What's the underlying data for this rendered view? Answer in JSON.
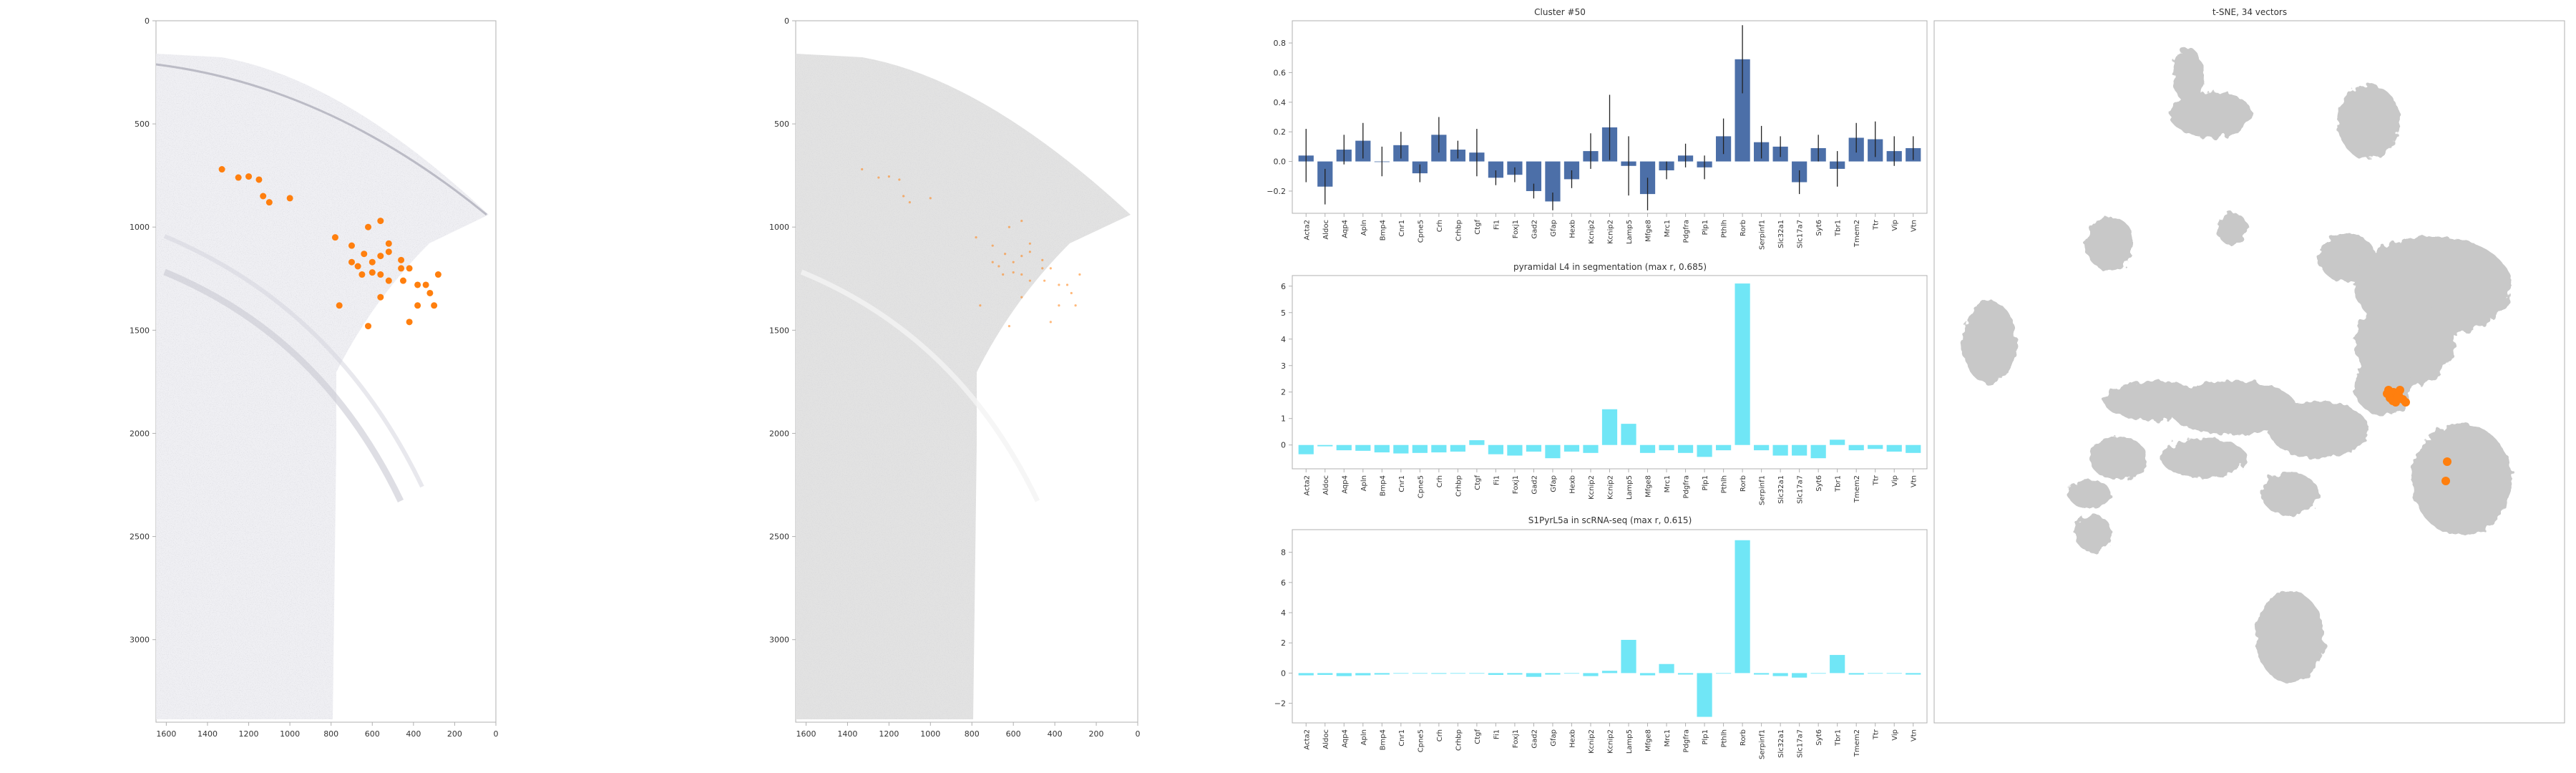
{
  "colors": {
    "orange": "#ff7f0e",
    "bar_blue": "#4c6fa8",
    "bar_cyan": "#70e6f6",
    "grey_point": "#c8c8c8",
    "axis": "#b0b0b0",
    "text": "#333333"
  },
  "genes": [
    "Acta2",
    "Aldoc",
    "Aqp4",
    "Apln",
    "Bmp4",
    "Cnr1",
    "Cpne5",
    "Crh",
    "Crhbp",
    "Ctgf",
    "Fi1",
    "Foxj1",
    "Gad2",
    "Gfap",
    "Hexb",
    "Kcnip2",
    "Kcnip2",
    "Lamp5",
    "Mfge8",
    "Mrc1",
    "Pdgfra",
    "Plp1",
    "Pthlh",
    "Rorb",
    "Serpinf1",
    "Slc32a1",
    "Slc17a7",
    "Syt6",
    "Tbr1",
    "Tmem2",
    "Ttr",
    "Vip",
    "Vtn"
  ],
  "chart_data": [
    {
      "id": "cells-highlight",
      "type": "scatter",
      "title": "",
      "xlim": [
        1650,
        0
      ],
      "ylim": [
        3400,
        0
      ],
      "xticks": [
        "1600",
        "1400",
        "1200",
        "1000",
        "800",
        "600",
        "400",
        "200",
        "0"
      ],
      "yticks": [
        "0",
        "500",
        "1000",
        "1500",
        "2000",
        "2500",
        "3000"
      ],
      "series": [
        {
          "points": [
            [
              1330,
              720
            ],
            [
              1250,
              760
            ],
            [
              1200,
              755
            ],
            [
              1150,
              770
            ],
            [
              1130,
              850
            ],
            [
              1100,
              880
            ],
            [
              1000,
              860
            ],
            [
              780,
              1050
            ],
            [
              700,
              1090
            ],
            [
              620,
              1000
            ],
            [
              560,
              970
            ],
            [
              520,
              1080
            ],
            [
              640,
              1130
            ],
            [
              600,
              1170
            ],
            [
              560,
              1140
            ],
            [
              520,
              1120
            ],
            [
              460,
              1160
            ],
            [
              700,
              1170
            ],
            [
              670,
              1190
            ],
            [
              650,
              1230
            ],
            [
              600,
              1220
            ],
            [
              560,
              1230
            ],
            [
              520,
              1260
            ],
            [
              460,
              1200
            ],
            [
              420,
              1200
            ],
            [
              380,
              1280
            ],
            [
              340,
              1280
            ],
            [
              320,
              1320
            ],
            [
              280,
              1230
            ],
            [
              450,
              1260
            ],
            [
              760,
              1380
            ],
            [
              560,
              1340
            ],
            [
              380,
              1380
            ],
            [
              420,
              1460
            ],
            [
              620,
              1480
            ],
            [
              300,
              1380
            ]
          ]
        }
      ]
    },
    {
      "id": "cells-segmentation",
      "type": "scatter",
      "title": "",
      "xlim": [
        1650,
        0
      ],
      "ylim": [
        3400,
        0
      ],
      "xticks": [
        "1600",
        "1400",
        "1200",
        "1000",
        "800",
        "600",
        "400",
        "200",
        "0"
      ],
      "yticks": [
        "0",
        "500",
        "1000",
        "1500",
        "2000",
        "2500",
        "3000"
      ]
    },
    {
      "id": "cluster-profile",
      "type": "bar",
      "title": "Cluster #50",
      "ylim": [
        -0.35,
        0.95
      ],
      "yticks": [
        "−0.2",
        "0.0",
        "0.2",
        "0.4",
        "0.6",
        "0.8"
      ],
      "values": [
        0.04,
        -0.17,
        0.08,
        0.14,
        0.0,
        0.11,
        -0.08,
        0.18,
        0.08,
        0.06,
        -0.11,
        -0.09,
        -0.2,
        -0.27,
        -0.12,
        0.07,
        0.23,
        -0.03,
        -0.22,
        -0.06,
        0.04,
        -0.04,
        0.17,
        0.69,
        0.13,
        0.1,
        -0.14,
        0.09,
        -0.05,
        0.16,
        0.15,
        0.07,
        0.09
      ],
      "errors": [
        0.18,
        0.12,
        0.1,
        0.12,
        0.1,
        0.09,
        0.06,
        0.12,
        0.06,
        0.16,
        0.05,
        0.05,
        0.05,
        0.06,
        0.06,
        0.12,
        0.22,
        0.2,
        0.11,
        0.06,
        0.08,
        0.08,
        0.12,
        0.23,
        0.11,
        0.07,
        0.08,
        0.09,
        0.12,
        0.1,
        0.12,
        0.1,
        0.08
      ]
    },
    {
      "id": "segmentation-profile",
      "type": "bar",
      "title": "pyramidal L4 in segmentation (max r, 0.685)",
      "ylim": [
        -0.9,
        6.4
      ],
      "yticks": [
        "0",
        "1",
        "2",
        "3",
        "4",
        "5",
        "6"
      ],
      "values": [
        -0.35,
        -0.05,
        -0.2,
        -0.22,
        -0.28,
        -0.32,
        -0.3,
        -0.28,
        -0.25,
        0.18,
        -0.35,
        -0.4,
        -0.25,
        -0.5,
        -0.25,
        -0.3,
        1.35,
        0.8,
        -0.3,
        -0.2,
        -0.3,
        -0.45,
        -0.2,
        6.1,
        -0.2,
        -0.4,
        -0.4,
        -0.5,
        0.2,
        -0.2,
        -0.15,
        -0.25,
        -0.3
      ]
    },
    {
      "id": "scrnaseq-profile",
      "type": "bar",
      "title": "S1PyrL5a in scRNA-seq (max r, 0.615)",
      "ylim": [
        -3.3,
        9.5
      ],
      "yticks": [
        "−2",
        "0",
        "2",
        "4",
        "6",
        "8"
      ],
      "values": [
        -0.15,
        -0.12,
        -0.2,
        -0.15,
        -0.1,
        0.0,
        0.0,
        -0.05,
        0.0,
        0.0,
        -0.12,
        -0.1,
        -0.25,
        -0.1,
        0.0,
        -0.2,
        0.15,
        2.2,
        -0.15,
        0.6,
        -0.1,
        -2.9,
        0.0,
        8.8,
        -0.1,
        -0.2,
        -0.3,
        0.0,
        1.2,
        -0.1,
        0.0,
        0.0,
        -0.1
      ]
    },
    {
      "id": "tsne",
      "type": "scatter",
      "title": "t-SNE, 34 vectors"
    }
  ]
}
